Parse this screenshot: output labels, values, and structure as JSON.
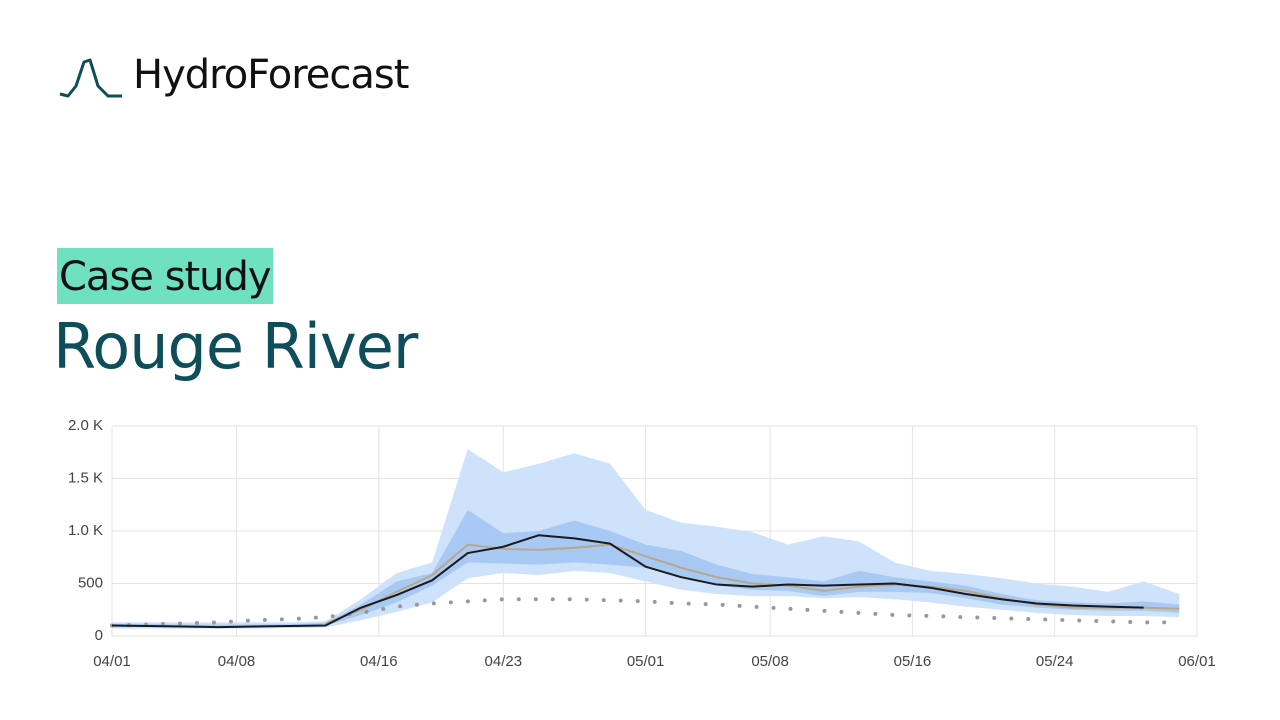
{
  "header": {
    "brand": "HydroForecast",
    "tag": "Case study",
    "title": "Rouge River"
  },
  "chart_data": {
    "type": "line",
    "x": [
      "04/01",
      "04/03",
      "04/05",
      "04/07",
      "04/09",
      "04/11",
      "04/13",
      "04/15",
      "04/17",
      "04/19",
      "04/21",
      "04/23",
      "04/25",
      "04/27",
      "04/29",
      "05/01",
      "05/03",
      "05/05",
      "05/07",
      "05/09",
      "05/11",
      "05/13",
      "05/15",
      "05/17",
      "05/19",
      "05/21",
      "05/23",
      "05/25",
      "05/27",
      "05/29",
      "05/31"
    ],
    "bands": [
      {
        "color": "#cfe2fb",
        "upper": [
          130,
          130,
          130,
          130,
          130,
          130,
          140,
          350,
          600,
          700,
          1780,
          1560,
          1640,
          1740,
          1640,
          1200,
          1080,
          1040,
          990,
          870,
          950,
          900,
          700,
          620,
          590,
          550,
          500,
          470,
          420,
          520,
          400
        ],
        "lower": [
          70,
          70,
          70,
          70,
          70,
          75,
          80,
          150,
          230,
          320,
          550,
          600,
          580,
          620,
          600,
          520,
          440,
          400,
          380,
          380,
          360,
          370,
          350,
          320,
          280,
          250,
          220,
          200,
          190,
          190,
          180
        ]
      },
      {
        "color": "#a9c9f5",
        "upper": [
          115,
          115,
          110,
          110,
          110,
          112,
          125,
          300,
          520,
          600,
          1200,
          980,
          1000,
          1100,
          1000,
          870,
          810,
          680,
          590,
          560,
          520,
          620,
          560,
          520,
          480,
          400,
          340,
          320,
          310,
          330,
          300
        ],
        "lower": [
          85,
          85,
          85,
          85,
          85,
          88,
          95,
          200,
          320,
          480,
          700,
          690,
          680,
          700,
          680,
          650,
          560,
          480,
          440,
          430,
          380,
          420,
          420,
          410,
          360,
          300,
          270,
          250,
          240,
          240,
          220
        ]
      }
    ],
    "series": [
      {
        "color": "#999999",
        "dotted": true,
        "values": [
          100,
          110,
          120,
          130,
          150,
          160,
          180,
          220,
          280,
          310,
          330,
          350,
          350,
          350,
          340,
          330,
          310,
          300,
          280,
          260,
          240,
          220,
          200,
          190,
          180,
          170,
          160,
          150,
          140,
          130,
          130
        ]
      },
      {
        "color": "#b8a886",
        "values": [
          null,
          null,
          null,
          null,
          null,
          null,
          120,
          250,
          420,
          580,
          870,
          830,
          820,
          840,
          870,
          760,
          650,
          560,
          500,
          480,
          430,
          470,
          490,
          470,
          430,
          360,
          300,
          270,
          270,
          270,
          260
        ]
      },
      {
        "color": "#1a1a1a",
        "values": [
          100,
          95,
          90,
          85,
          90,
          95,
          100,
          270,
          390,
          530,
          790,
          850,
          960,
          930,
          880,
          660,
          560,
          490,
          470,
          490,
          480,
          490,
          500,
          460,
          400,
          350,
          310,
          290,
          280,
          270,
          null
        ]
      }
    ],
    "xlim": [
      "04/01",
      "06/01"
    ],
    "xticks": [
      "04/01",
      "04/08",
      "04/16",
      "04/23",
      "05/01",
      "05/08",
      "05/16",
      "05/24",
      "06/01"
    ],
    "ylim": [
      0,
      2000
    ],
    "yticks": [
      0,
      500,
      {
        "value": 1000,
        "label": "1.0 K"
      },
      {
        "value": 1500,
        "label": "1.5 K"
      },
      {
        "value": 2000,
        "label": "2.0 K"
      }
    ],
    "grid": true
  }
}
